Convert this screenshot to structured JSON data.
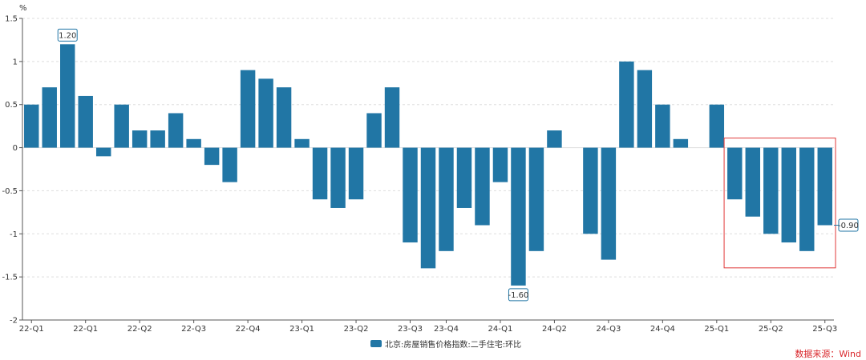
{
  "chart_data": {
    "type": "bar",
    "ylabel": "%",
    "ylim": [
      -2,
      1.5
    ],
    "yticks": [
      "1.5",
      "1",
      "0.5",
      "0",
      "-0.5",
      "-1",
      "-1.5",
      "-2"
    ],
    "grid": true,
    "legend_position": "bottom-center",
    "series": [
      {
        "name": "北京:房屋销售价格指数:二手住宅:环比",
        "color": "#2176a5",
        "values": [
          0.5,
          0.7,
          1.2,
          0.6,
          -0.1,
          0.5,
          0.2,
          0.2,
          0.4,
          0.1,
          -0.2,
          -0.4,
          0.9,
          0.8,
          0.7,
          0.1,
          -0.6,
          -0.7,
          -0.6,
          0.4,
          0.7,
          -1.1,
          -1.4,
          -1.2,
          -0.7,
          -0.9,
          -0.4,
          -1.6,
          -1.2,
          0.2,
          null,
          -1.0,
          -1.3,
          1.0,
          0.9,
          0.5,
          0.1,
          null,
          0.5,
          -0.6,
          -0.8,
          -1.0,
          -1.1,
          -1.2,
          -0.9
        ]
      }
    ],
    "xtick_labels": [
      "22-Q1",
      "22-Q1",
      "22-Q2",
      "22-Q3",
      "22-Q4",
      "23-Q1",
      "23-Q2",
      "23-Q3",
      "23-Q4",
      "24-Q1",
      "24-Q2",
      "24-Q3",
      "24-Q4",
      "25-Q1",
      "25-Q2",
      "25-Q3"
    ],
    "annotations": [
      {
        "label": "1.20",
        "bar_index": 2,
        "side": "top"
      },
      {
        "label": "-1.60",
        "bar_index": 27,
        "side": "bottom"
      },
      {
        "label": "-0.90",
        "bar_index": 44,
        "side": "right"
      }
    ],
    "highlight_box": {
      "from_index": 39,
      "to_index": 44,
      "color": "#e03a3a"
    }
  },
  "source_text": "数据来源：Wind"
}
